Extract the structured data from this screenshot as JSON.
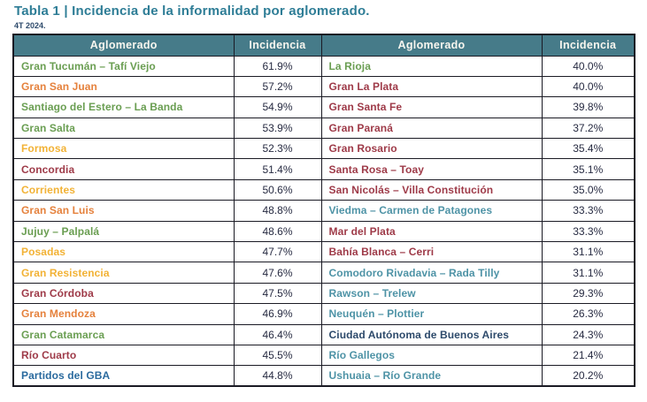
{
  "page": {
    "title": "Tabla 1 | Incidencia de la informalidad por aglomerado.",
    "subtitle": "4T 2024."
  },
  "colors": {
    "green": "#6a9e52",
    "orange": "#e5813c",
    "gold": "#f2b235",
    "maroon": "#9e3a48",
    "blue": "#2a6a9e",
    "teal": "#4e93a6",
    "navy": "#2d4a6b",
    "header_bg": "#467b89",
    "header_text": "#f8f6ef",
    "value_text": "#262a41",
    "title": "#2e7d96",
    "subtitle": "#2d4a6b",
    "border": "#1a1a24",
    "page_bg": "#ffffff"
  },
  "table": {
    "headers": [
      "Aglomerado",
      "Incidencia",
      "Aglomerado",
      "Incidencia"
    ],
    "left_rows": [
      {
        "name": "Gran Tucumán – Tafí Viejo",
        "value": "61.9%",
        "color": "green"
      },
      {
        "name": "Gran San Juan",
        "value": "57.2%",
        "color": "orange"
      },
      {
        "name": "Santiago del Estero – La Banda",
        "value": "54.9%",
        "color": "green"
      },
      {
        "name": "Gran Salta",
        "value": "53.9%",
        "color": "green"
      },
      {
        "name": "Formosa",
        "value": "52.3%",
        "color": "gold"
      },
      {
        "name": "Concordia",
        "value": "51.4%",
        "color": "maroon"
      },
      {
        "name": "Corrientes",
        "value": "50.6%",
        "color": "gold"
      },
      {
        "name": "Gran San Luis",
        "value": "48.8%",
        "color": "orange"
      },
      {
        "name": "Jujuy – Palpalá",
        "value": "48.6%",
        "color": "green"
      },
      {
        "name": "Posadas",
        "value": "47.7%",
        "color": "gold"
      },
      {
        "name": "Gran Resistencia",
        "value": "47.6%",
        "color": "gold"
      },
      {
        "name": "Gran Córdoba",
        "value": "47.5%",
        "color": "maroon"
      },
      {
        "name": "Gran Mendoza",
        "value": "46.9%",
        "color": "orange"
      },
      {
        "name": "Gran Catamarca",
        "value": "46.4%",
        "color": "green"
      },
      {
        "name": "Río Cuarto",
        "value": "45.5%",
        "color": "maroon"
      },
      {
        "name": "Partidos del GBA",
        "value": "44.8%",
        "color": "blue"
      }
    ],
    "right_rows": [
      {
        "name": "La Rioja",
        "value": "40.0%",
        "color": "green"
      },
      {
        "name": "Gran La Plata",
        "value": "40.0%",
        "color": "maroon"
      },
      {
        "name": "Gran Santa Fe",
        "value": "39.8%",
        "color": "maroon"
      },
      {
        "name": "Gran Paraná",
        "value": "37.2%",
        "color": "maroon"
      },
      {
        "name": "Gran Rosario",
        "value": "35.4%",
        "color": "maroon"
      },
      {
        "name": "Santa Rosa – Toay",
        "value": "35.1%",
        "color": "maroon"
      },
      {
        "name": "San Nicolás – Villa Constitución",
        "value": "35.0%",
        "color": "maroon"
      },
      {
        "name": "Viedma – Carmen de Patagones",
        "value": "33.3%",
        "color": "teal"
      },
      {
        "name": "Mar del Plata",
        "value": "33.3%",
        "color": "maroon"
      },
      {
        "name": "Bahía Blanca – Cerri",
        "value": "31.1%",
        "color": "maroon"
      },
      {
        "name": "Comodoro Rivadavia – Rada Tilly",
        "value": "31.1%",
        "color": "teal"
      },
      {
        "name": "Rawson – Trelew",
        "value": "29.3%",
        "color": "teal"
      },
      {
        "name": "Neuquén – Plottier",
        "value": "26.3%",
        "color": "teal"
      },
      {
        "name": "Ciudad Autónoma de Buenos Aires",
        "value": "24.3%",
        "color": "navy"
      },
      {
        "name": "Río Gallegos",
        "value": "21.4%",
        "color": "teal"
      },
      {
        "name": "Ushuaia – Río Grande",
        "value": "20.2%",
        "color": "teal"
      }
    ]
  }
}
